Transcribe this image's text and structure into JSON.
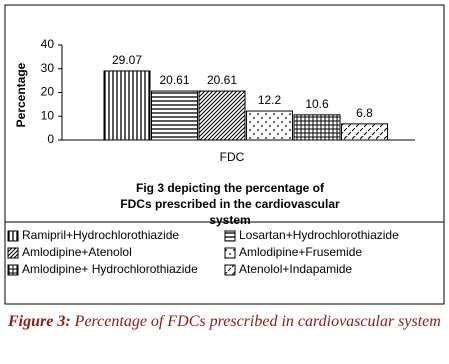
{
  "chart_data": {
    "type": "bar",
    "title": "Fig 3 depicting the percentage of FDCs prescribed in the cardiovascular system",
    "y_label": "Percentage",
    "x_label": "FDC",
    "ylim": [
      0,
      40
    ],
    "yticks": [
      0,
      10,
      20,
      30,
      40
    ],
    "series": [
      {
        "name": "Ramipril+Hydrochlorothiazide",
        "pattern": "vertical",
        "values": [
          29.07
        ]
      },
      {
        "name": "Losartan+Hydrochlorothiazide",
        "pattern": "horizontal",
        "values": [
          20.61
        ]
      },
      {
        "name": "Amlodipine+Atenolol",
        "pattern": "diagonal",
        "values": [
          20.61
        ]
      },
      {
        "name": "Amlodipine+Frusemide",
        "pattern": "dots",
        "values": [
          12.2
        ]
      },
      {
        "name": "Amlodipine+ Hydrochlorothiazide",
        "pattern": "grid",
        "values": [
          10.6
        ]
      },
      {
        "name": "Atenolol+Indapamide",
        "pattern": "dashes",
        "values": [
          6.8
        ]
      }
    ]
  },
  "caption": {
    "label": "Figure 3:",
    "text": "Percentage of FDCs prescribed in cardiovascular system"
  }
}
